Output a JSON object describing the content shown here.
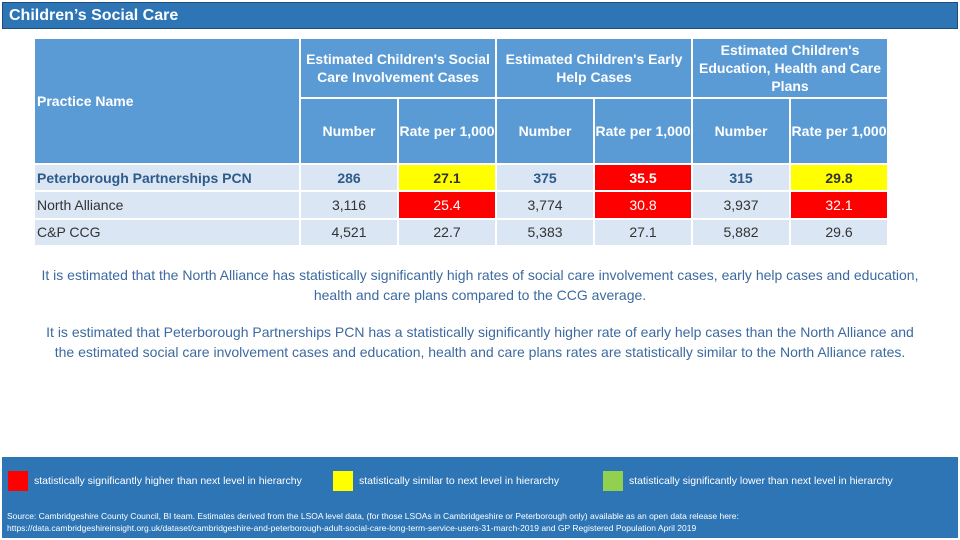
{
  "title": "Children’s Social Care",
  "table": {
    "practice_header": "Practice Name",
    "groups": [
      "Estimated Children's Social Care Involvement Cases",
      "Estimated Children's Early Help Cases",
      "Estimated Children's Education, Health and Care Plans"
    ],
    "sub_number": "Number",
    "sub_rate": "Rate per 1,000",
    "rows": [
      {
        "name": "Peterborough Partnerships PCN",
        "cells": [
          "286",
          "27.1",
          "375",
          "35.5",
          "315",
          "29.8"
        ],
        "flags": [
          "",
          "yellow",
          "",
          "red",
          "",
          "yellow"
        ]
      },
      {
        "name": "North Alliance",
        "cells": [
          "3,116",
          "25.4",
          "3,774",
          "30.8",
          "3,937",
          "32.1"
        ],
        "flags": [
          "",
          "red",
          "",
          "red",
          "",
          "red"
        ]
      },
      {
        "name": "C&P CCG",
        "cells": [
          "4,521",
          "22.7",
          "5,383",
          "27.1",
          "5,882",
          "29.6"
        ],
        "flags": [
          "",
          "",
          "",
          "",
          "",
          ""
        ]
      }
    ]
  },
  "paragraph1": "It is estimated that the North Alliance has statistically significantly high rates of social care involvement cases, early help cases and education, health and care plans compared to the CCG average.",
  "paragraph2": "It is estimated that Peterborough Partnerships PCN has a statistically significantly higher rate of early help cases than the North Alliance and the estimated social care involvement cases and education, health and care plans rates are statistically similar to the North Alliance rates.",
  "legend": {
    "red": "statistically significantly higher than next level in hierarchy",
    "yellow": "statistically similar to next level in hierarchy",
    "green": "statistically significantly lower than next level in hierarchy",
    "colors": {
      "red": "#ff0000",
      "yellow": "#ffff00",
      "green": "#92d050"
    }
  },
  "source": "Source: Cambridgeshire County Council, BI team. Estimates derived from the LSOA level data, (for those LSOAs in Cambridgeshire or Peterborough only) available as an open data release here: https://data.cambridgeshireinsight.org.uk/dataset/cambridgeshire-and-peterborough-adult-social-care-long-term-service-users-31-march-2019 and GP Registered Population April 2019"
}
